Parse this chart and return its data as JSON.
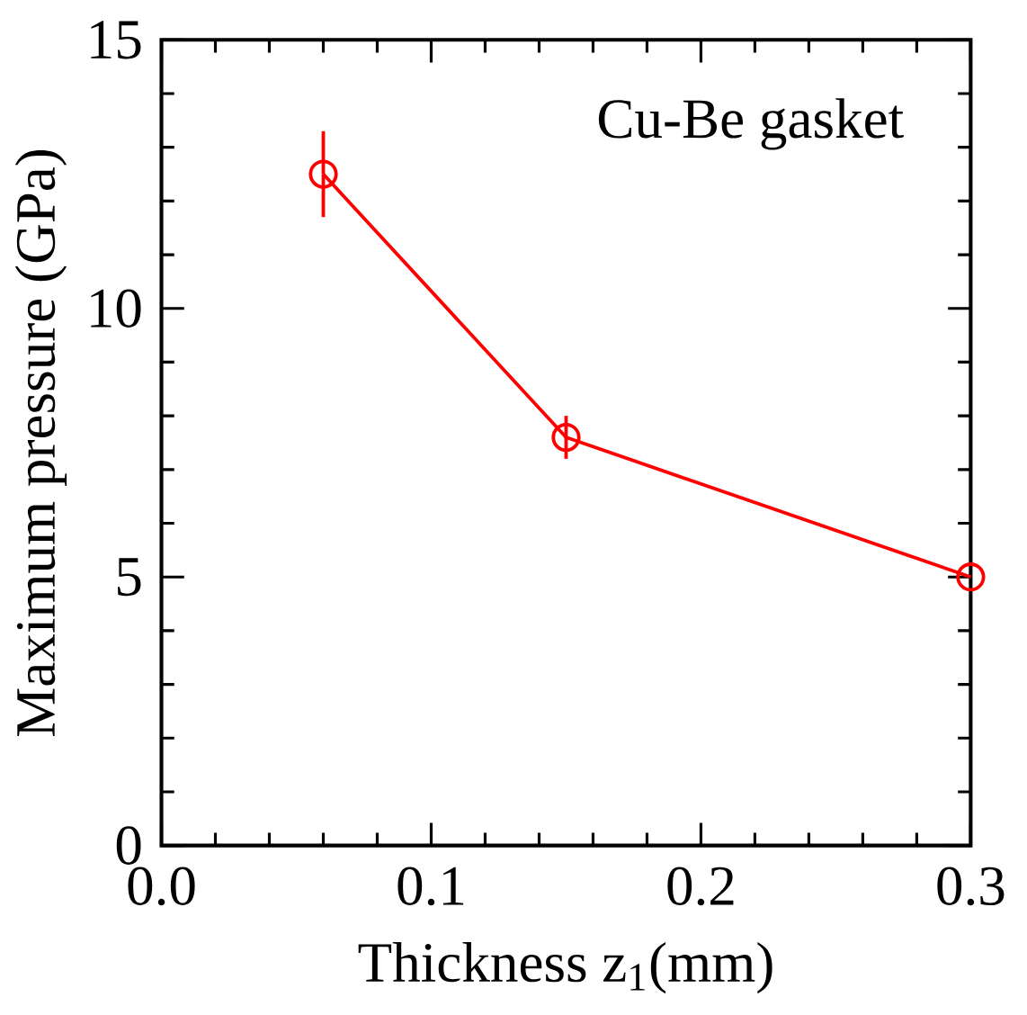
{
  "chart_data": {
    "type": "line",
    "xlabel": "Thickness z$_{1}$(mm)",
    "ylabel": "Maximum pressure (GPa)",
    "x": [
      0.06,
      0.15,
      0.3
    ],
    "series": [
      {
        "color": "#ff0000",
        "values": [
          12.5,
          7.6,
          5.0
        ],
        "errors": [
          0.8,
          0.4,
          null
        ]
      }
    ],
    "xlim": [
      0,
      0.3
    ],
    "ylim": [
      0,
      15
    ],
    "xticks": [
      {
        "value": 0,
        "label": "0.0"
      },
      0.1,
      0.2,
      0.3
    ],
    "yticks": [
      0,
      5,
      10,
      15
    ],
    "marker": "circle",
    "line_style": "solid",
    "grid": false,
    "annotations": [
      "Cu-Be gasket"
    ]
  }
}
